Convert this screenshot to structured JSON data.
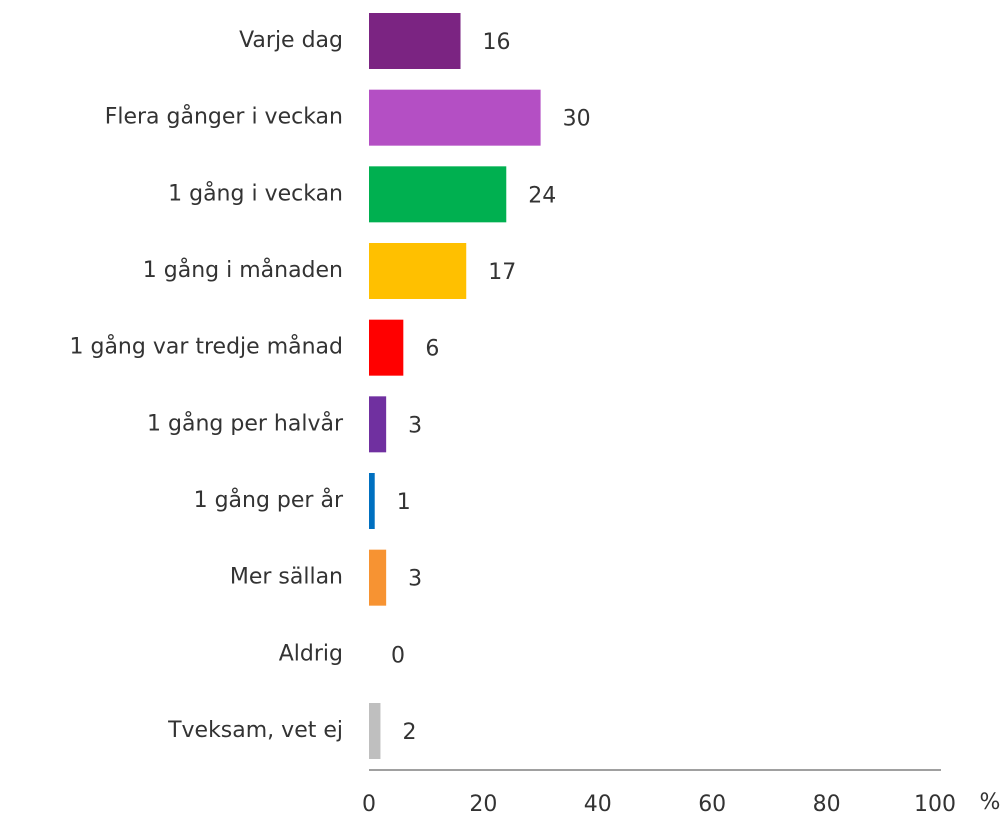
{
  "chart_data": {
    "type": "bar",
    "orientation": "horizontal",
    "categories": [
      "Varje dag",
      "Flera gånger i veckan",
      "1 gång i veckan",
      "1 gång i månaden",
      "1 gång var tredje månad",
      "1 gång per halvår",
      "1 gång per år",
      "Mer sällan",
      "Aldrig",
      "Tveksam, vet ej"
    ],
    "values": [
      16,
      30,
      24,
      17,
      6,
      3,
      1,
      3,
      0,
      2
    ],
    "colors": [
      "#7B2482",
      "#B44FC4",
      "#00B050",
      "#FFC000",
      "#FF0000",
      "#7030A0",
      "#0070C0",
      "#F79332",
      "#7F7F7F",
      "#BFBFBF"
    ],
    "xlim": [
      0,
      100
    ],
    "xticks": [
      0,
      20,
      40,
      60,
      80,
      100
    ],
    "xlabel": "%",
    "grid": false
  }
}
